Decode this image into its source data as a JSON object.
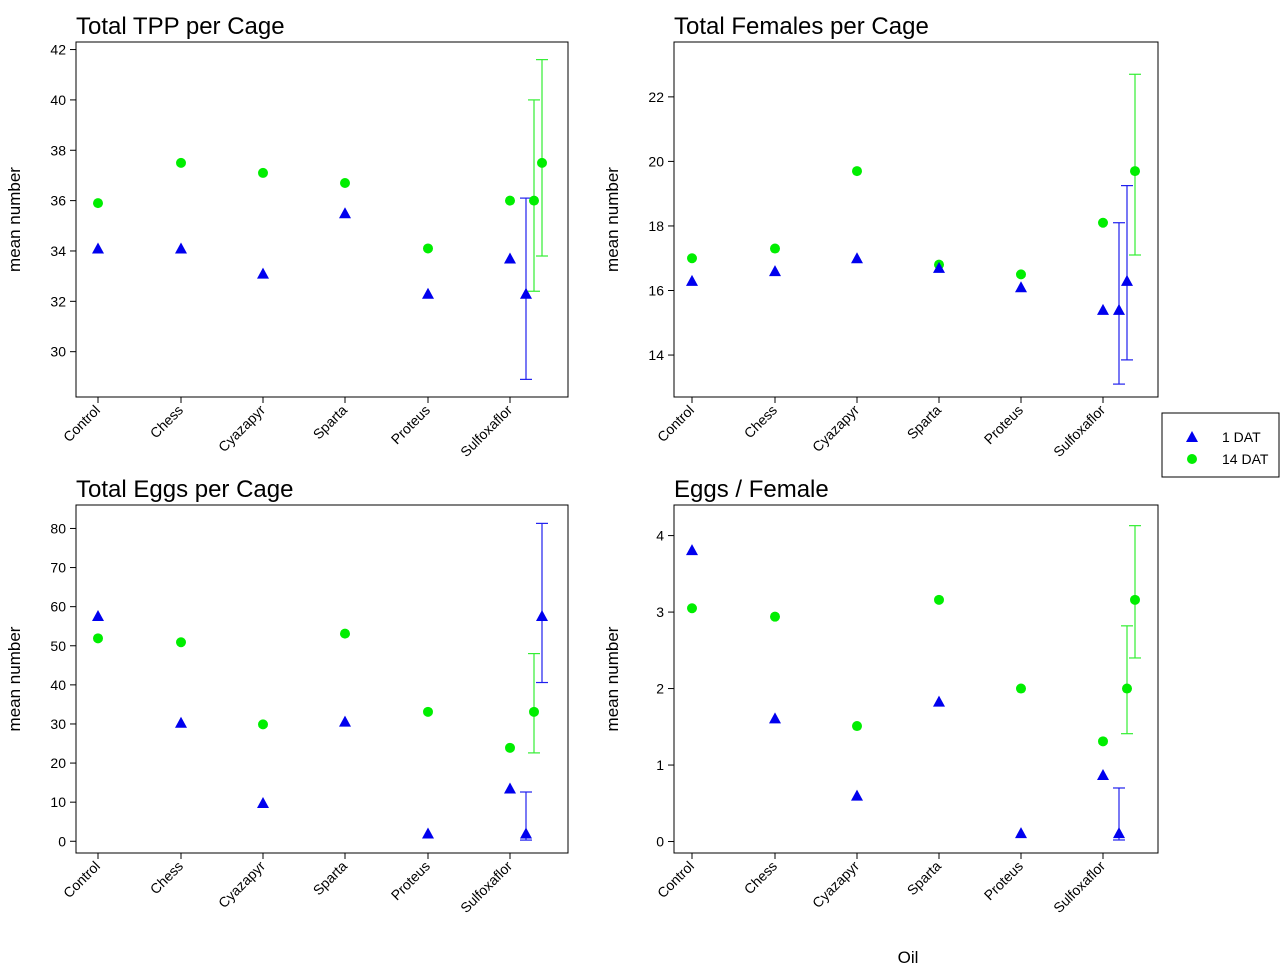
{
  "figure_xlabel": "Oil",
  "legend": {
    "entries": [
      {
        "label": "1 DAT",
        "marker": "triangle",
        "color": "#0000ee"
      },
      {
        "label": "14 DAT",
        "marker": "circle",
        "color": "#00ee00"
      }
    ],
    "placement": "right"
  },
  "colors": {
    "series_1": "#0000ee",
    "series_2": "#00ee00",
    "error_1": "#2020ee",
    "error_2": "#33ee33"
  },
  "chart_data": [
    {
      "type": "scatter",
      "title": "Total TPP per Cage",
      "ylabel": "mean number",
      "ylim": [
        28.2,
        42.3
      ],
      "yticks": [
        30,
        32,
        34,
        36,
        38,
        40,
        42
      ],
      "categories": [
        "Control",
        "Chess",
        "Cyazapyr",
        "Sparta",
        "Proteus",
        "Sulfoxaflor"
      ],
      "series": [
        {
          "name": "1 DAT",
          "values": [
            34.1,
            34.1,
            33.1,
            35.5,
            32.3,
            33.7
          ]
        },
        {
          "name": "14 DAT",
          "values": [
            35.9,
            37.5,
            37.1,
            36.7,
            34.1,
            36.0
          ]
        }
      ],
      "error_bars": [
        {
          "series": "1 DAT",
          "x": 5.2,
          "center": 32.3,
          "low": 28.9,
          "high": 36.1
        },
        {
          "series": "14 DAT",
          "x": 5.3,
          "center": 36.0,
          "low": 32.4,
          "high": 40.0
        },
        {
          "series": "14 DAT",
          "x": 5.4,
          "center": 37.5,
          "low": 33.8,
          "high": 41.6
        }
      ]
    },
    {
      "type": "scatter",
      "title": "Total Females per Cage",
      "ylabel": "mean number",
      "ylim": [
        12.7,
        23.7
      ],
      "yticks": [
        14,
        16,
        18,
        20,
        22
      ],
      "categories": [
        "Control",
        "Chess",
        "Cyazapyr",
        "Sparta",
        "Proteus",
        "Sulfoxaflor"
      ],
      "series": [
        {
          "name": "1 DAT",
          "values": [
            16.3,
            16.6,
            17.0,
            16.7,
            16.1,
            15.4
          ]
        },
        {
          "name": "14 DAT",
          "values": [
            17.0,
            17.3,
            19.7,
            16.8,
            16.5,
            18.1
          ]
        }
      ],
      "error_bars": [
        {
          "series": "1 DAT",
          "x": 5.2,
          "center": 15.4,
          "low": 13.1,
          "high": 18.1
        },
        {
          "series": "1 DAT",
          "x": 5.3,
          "center": 16.3,
          "low": 13.85,
          "high": 19.25
        },
        {
          "series": "14 DAT",
          "x": 5.4,
          "center": 19.7,
          "low": 17.1,
          "high": 22.7
        }
      ]
    },
    {
      "type": "scatter",
      "title": "Total Eggs per Cage",
      "ylabel": "mean number",
      "ylim": [
        -3,
        86
      ],
      "yticks": [
        0,
        10,
        20,
        30,
        40,
        50,
        60,
        70,
        80
      ],
      "categories": [
        "Control",
        "Chess",
        "Cyazapyr",
        "Sparta",
        "Proteus",
        "Sulfoxaflor"
      ],
      "series": [
        {
          "name": "1 DAT",
          "values": [
            57.6,
            30.3,
            9.8,
            30.6,
            2.0,
            13.5
          ]
        },
        {
          "name": "14 DAT",
          "values": [
            51.9,
            50.9,
            29.9,
            53.1,
            33.1,
            23.9
          ]
        }
      ],
      "error_bars": [
        {
          "series": "1 DAT",
          "x": 5.2,
          "center": 2.0,
          "low": 0.3,
          "high": 12.6
        },
        {
          "series": "14 DAT",
          "x": 5.3,
          "center": 33.1,
          "low": 22.6,
          "high": 48.0
        },
        {
          "series": "1 DAT",
          "x": 5.4,
          "center": 57.6,
          "low": 40.6,
          "high": 81.3
        }
      ]
    },
    {
      "type": "scatter",
      "title": "Eggs / Female",
      "ylabel": "mean number",
      "ylim": [
        -0.15,
        4.4
      ],
      "yticks": [
        0,
        1,
        2,
        3,
        4
      ],
      "categories": [
        "Control",
        "Chess",
        "Cyazapyr",
        "Sparta",
        "Proteus",
        "Sulfoxaflor"
      ],
      "series": [
        {
          "name": "1 DAT",
          "values": [
            3.81,
            1.61,
            0.6,
            1.83,
            0.11,
            0.87
          ]
        },
        {
          "name": "14 DAT",
          "values": [
            3.05,
            2.94,
            1.51,
            3.16,
            2.0,
            1.31
          ]
        }
      ],
      "error_bars": [
        {
          "series": "1 DAT",
          "x": 5.2,
          "center": 0.11,
          "low": 0.02,
          "high": 0.7
        },
        {
          "series": "14 DAT",
          "x": 5.3,
          "center": 2.0,
          "low": 1.41,
          "high": 2.82
        },
        {
          "series": "14 DAT",
          "x": 5.4,
          "center": 3.16,
          "low": 2.4,
          "high": 4.13
        }
      ]
    }
  ]
}
